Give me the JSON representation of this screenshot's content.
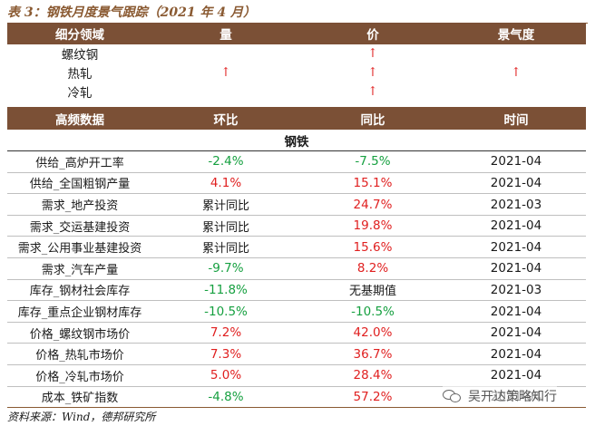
{
  "caption": "表 3：钢铁月度景气跟踪（2021 年 4 月）",
  "table1": {
    "headers": [
      "细分领域",
      "量",
      "价",
      "景气度"
    ],
    "rows": [
      {
        "name": "螺纹钢",
        "vol": "",
        "price": "↑",
        "boom": ""
      },
      {
        "name": "热轧",
        "vol": "↑",
        "price": "↑",
        "boom": "↑"
      },
      {
        "name": "冷轧",
        "vol": "",
        "price": "↑",
        "boom": ""
      }
    ]
  },
  "table2": {
    "headers": [
      "高频数据",
      "环比",
      "同比",
      "时间"
    ],
    "section": "钢铁",
    "rows": [
      {
        "name": "供给_高炉开工率",
        "mom": "-2.4%",
        "mom_sign": "neg",
        "yoy": "-7.5%",
        "yoy_sign": "neg",
        "time": "2021-04"
      },
      {
        "name": "供给_全国粗钢产量",
        "mom": "4.1%",
        "mom_sign": "pos",
        "yoy": "15.1%",
        "yoy_sign": "pos",
        "time": "2021-04"
      },
      {
        "name": "需求_地产投资",
        "mom": "累计同比",
        "mom_sign": "zh",
        "yoy": "24.7%",
        "yoy_sign": "pos",
        "time": "2021-03"
      },
      {
        "name": "需求_交运基建投资",
        "mom": "累计同比",
        "mom_sign": "zh",
        "yoy": "19.8%",
        "yoy_sign": "pos",
        "time": "2021-04"
      },
      {
        "name": "需求_公用事业基建投资",
        "mom": "累计同比",
        "mom_sign": "zh",
        "yoy": "15.6%",
        "yoy_sign": "pos",
        "time": "2021-04"
      },
      {
        "name": "需求_汽车产量",
        "mom": "-9.7%",
        "mom_sign": "neg",
        "yoy": "8.2%",
        "yoy_sign": "pos",
        "time": "2021-04"
      },
      {
        "name": "库存_钢材社会库存",
        "mom": "-11.8%",
        "mom_sign": "neg",
        "yoy": "无基期值",
        "yoy_sign": "zh",
        "time": "2021-03"
      },
      {
        "name": "库存_重点企业钢材库存",
        "mom": "-10.5%",
        "mom_sign": "neg",
        "yoy": "-10.5%",
        "yoy_sign": "neg",
        "time": "2021-04"
      },
      {
        "name": "价格_螺纹钢市场价",
        "mom": "7.2%",
        "mom_sign": "pos",
        "yoy": "42.0%",
        "yoy_sign": "pos",
        "time": "2021-04"
      },
      {
        "name": "价格_热轧市场价",
        "mom": "7.3%",
        "mom_sign": "pos",
        "yoy": "36.7%",
        "yoy_sign": "pos",
        "time": "2021-04"
      },
      {
        "name": "价格_冷轧市场价",
        "mom": "5.0%",
        "mom_sign": "pos",
        "yoy": "28.4%",
        "yoy_sign": "pos",
        "time": "2021-04"
      },
      {
        "name": "成本_铁矿指数",
        "mom": "-4.8%",
        "mom_sign": "neg",
        "yoy": "57.2%",
        "yoy_sign": "pos",
        "time": "2021-04"
      }
    ]
  },
  "footer": "资料来源：Wind，德邦研究所",
  "watermark": "吴开达策略知行",
  "colors": {
    "header_bg": "#7b5036",
    "positive": "#e02020",
    "negative": "#16a040"
  }
}
